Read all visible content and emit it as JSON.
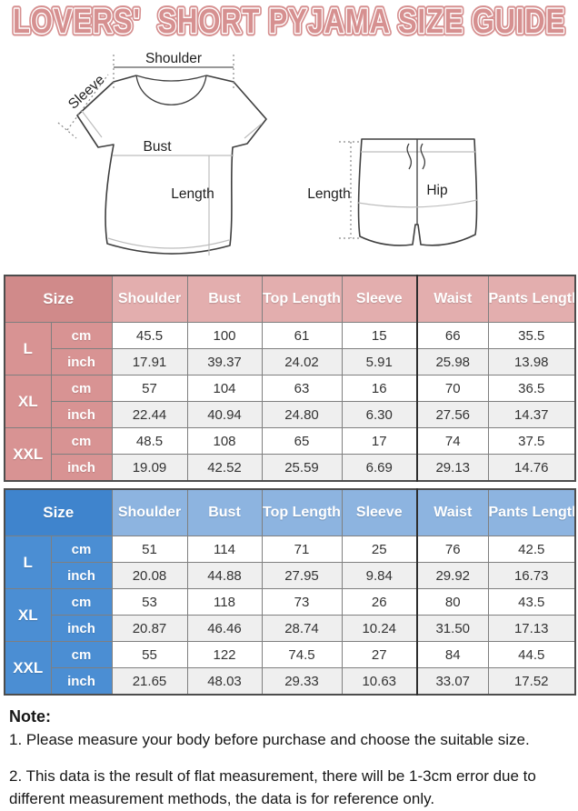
{
  "title": "LOVERS'  SHORT PYJAMA SIZE GUIDE",
  "colors": {
    "title_pink": "#d69090",
    "pink_dark": "#d08a8a",
    "pink_mid": "#d89393",
    "pink_light": "#e3aeae",
    "blue_dark": "#3f84cd",
    "blue_mid": "#4b8ed3",
    "blue_light": "#8db4e0",
    "row_alt": "#efefef"
  },
  "diagram": {
    "shirt": {
      "shoulder_label": "Shoulder",
      "sleeve_label": "Sleeve",
      "bust_label": "Bust",
      "length_label": "Length"
    },
    "shorts": {
      "length_label": "Length",
      "hip_label": "Hip"
    }
  },
  "tables": [
    {
      "id": "women",
      "theme": "pink",
      "size_header": "Size",
      "columns": [
        "Shoulder",
        "Bust",
        "Top Length",
        "Sleeve",
        "Waist",
        "Pants Length"
      ],
      "units": [
        "cm",
        "inch"
      ],
      "rows": [
        {
          "size": "L",
          "cm": [
            "45.5",
            "100",
            "61",
            "15",
            "66",
            "35.5"
          ],
          "inch": [
            "17.91",
            "39.37",
            "24.02",
            "5.91",
            "25.98",
            "13.98"
          ]
        },
        {
          "size": "XL",
          "cm": [
            "57",
            "104",
            "63",
            "16",
            "70",
            "36.5"
          ],
          "inch": [
            "22.44",
            "40.94",
            "24.80",
            "6.30",
            "27.56",
            "14.37"
          ]
        },
        {
          "size": "XXL",
          "cm": [
            "48.5",
            "108",
            "65",
            "17",
            "74",
            "37.5"
          ],
          "inch": [
            "19.09",
            "42.52",
            "25.59",
            "6.69",
            "29.13",
            "14.76"
          ]
        }
      ]
    },
    {
      "id": "men",
      "theme": "blue",
      "size_header": "Size",
      "columns": [
        "Shoulder",
        "Bust",
        "Top Length",
        "Sleeve",
        "Waist",
        "Pants Length"
      ],
      "units": [
        "cm",
        "inch"
      ],
      "rows": [
        {
          "size": "L",
          "cm": [
            "51",
            "114",
            "71",
            "25",
            "76",
            "42.5"
          ],
          "inch": [
            "20.08",
            "44.88",
            "27.95",
            "9.84",
            "29.92",
            "16.73"
          ]
        },
        {
          "size": "XL",
          "cm": [
            "53",
            "118",
            "73",
            "26",
            "80",
            "43.5"
          ],
          "inch": [
            "20.87",
            "46.46",
            "28.74",
            "10.24",
            "31.50",
            "17.13"
          ]
        },
        {
          "size": "XXL",
          "cm": [
            "55",
            "122",
            "74.5",
            "27",
            "84",
            "44.5"
          ],
          "inch": [
            "21.65",
            "48.03",
            "29.33",
            "10.63",
            "33.07",
            "17.52"
          ]
        }
      ]
    }
  ],
  "note": {
    "heading": "Note:",
    "items": [
      "1. Please measure your body before purchase and choose the suitable size.",
      "2. This data is the result of flat measurement, there will be 1-3cm error due to different measurement methods, the data is for reference only."
    ]
  }
}
